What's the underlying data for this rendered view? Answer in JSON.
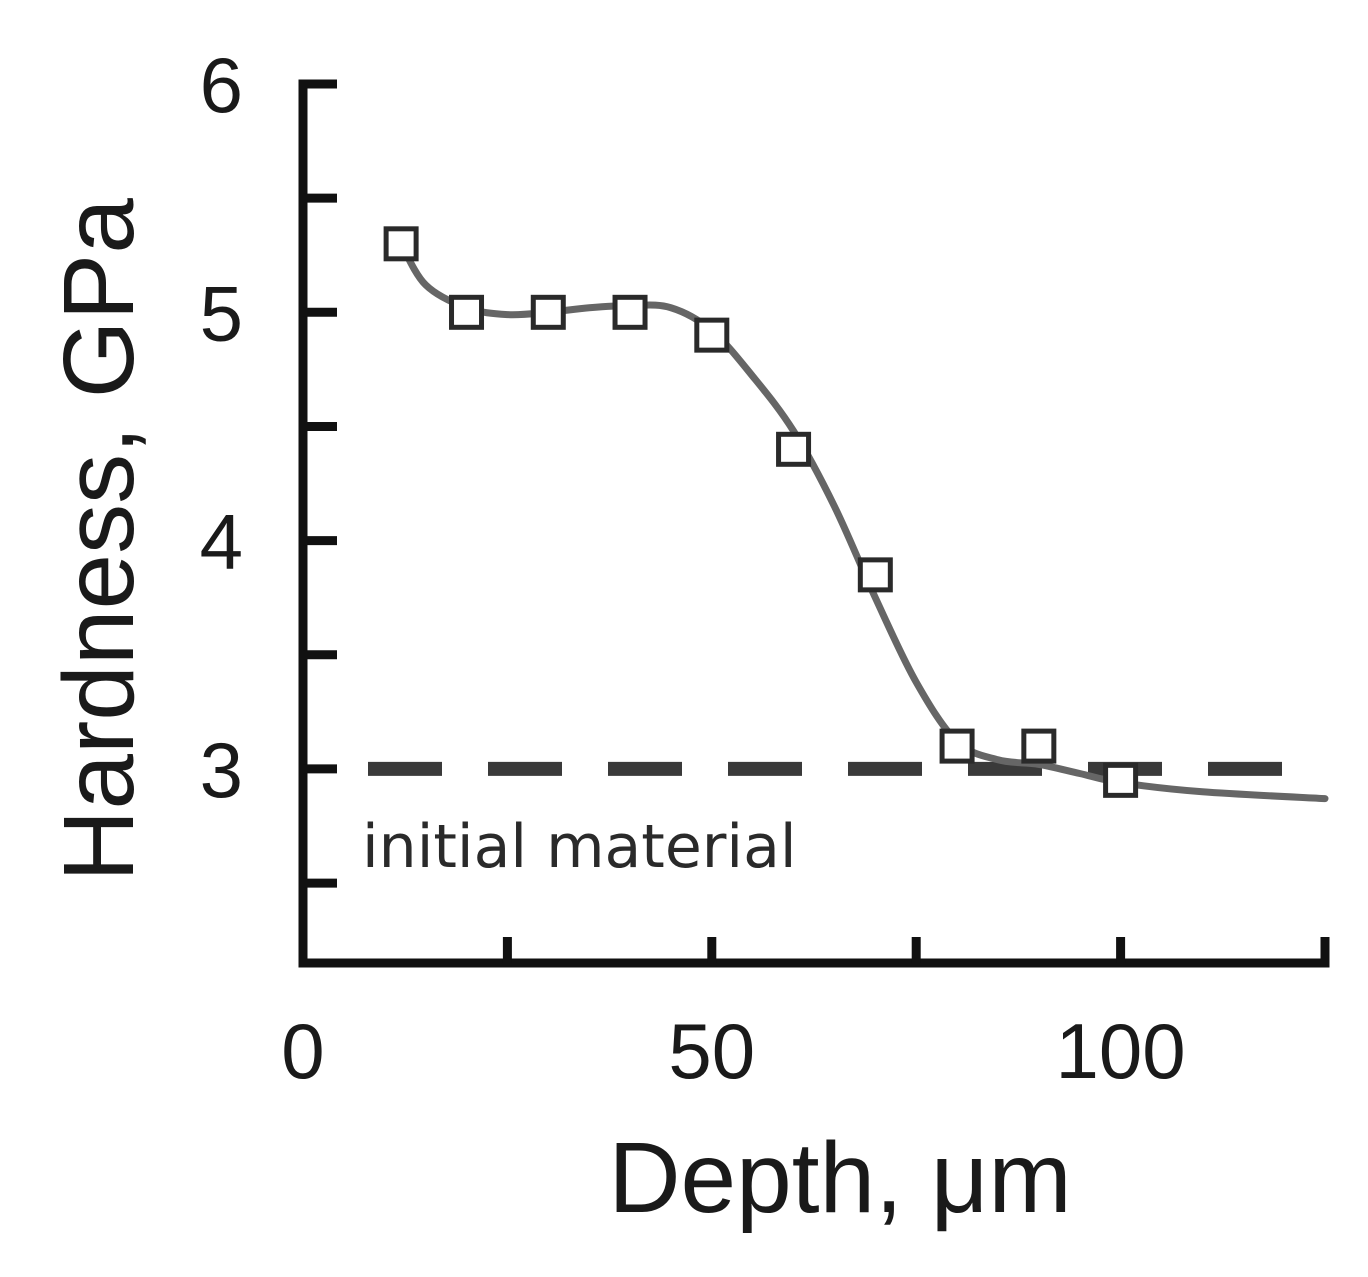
{
  "chart_data": {
    "type": "line",
    "title": "",
    "xlabel": "Depth, μm",
    "ylabel": "Hardness, GPa",
    "xlim": [
      0,
      125
    ],
    "ylim": [
      2.15,
      6
    ],
    "x_ticks": [
      0,
      50,
      100
    ],
    "x_minor_ticks": [
      25,
      75,
      125
    ],
    "y_ticks": [
      3,
      4,
      5,
      6
    ],
    "y_minor_ticks": [
      2.5,
      3.5,
      4.5,
      5.5
    ],
    "grid": false,
    "legend": "none",
    "series": [
      {
        "marker": "open-square",
        "line": "smooth",
        "color": "#555555",
        "x": [
          12,
          20,
          30,
          40,
          50,
          60,
          70,
          80,
          90,
          100
        ],
        "y": [
          5.3,
          5.0,
          5.0,
          5.0,
          4.9,
          4.4,
          3.85,
          3.1,
          3.1,
          2.95
        ]
      }
    ],
    "fit_curve": {
      "x": [
        12,
        15,
        20,
        25,
        30,
        35,
        40,
        45,
        50,
        55,
        60,
        65,
        70,
        75,
        80,
        85,
        90,
        95,
        100,
        110,
        125
      ],
      "y": [
        5.3,
        5.12,
        5.02,
        4.99,
        5.0,
        5.02,
        5.03,
        5.02,
        4.92,
        4.72,
        4.48,
        4.15,
        3.75,
        3.38,
        3.12,
        3.04,
        3.02,
        2.98,
        2.94,
        2.9,
        2.87
      ]
    },
    "reference_line": {
      "y": 3.0,
      "style": "dashed",
      "label": "initial material"
    }
  }
}
